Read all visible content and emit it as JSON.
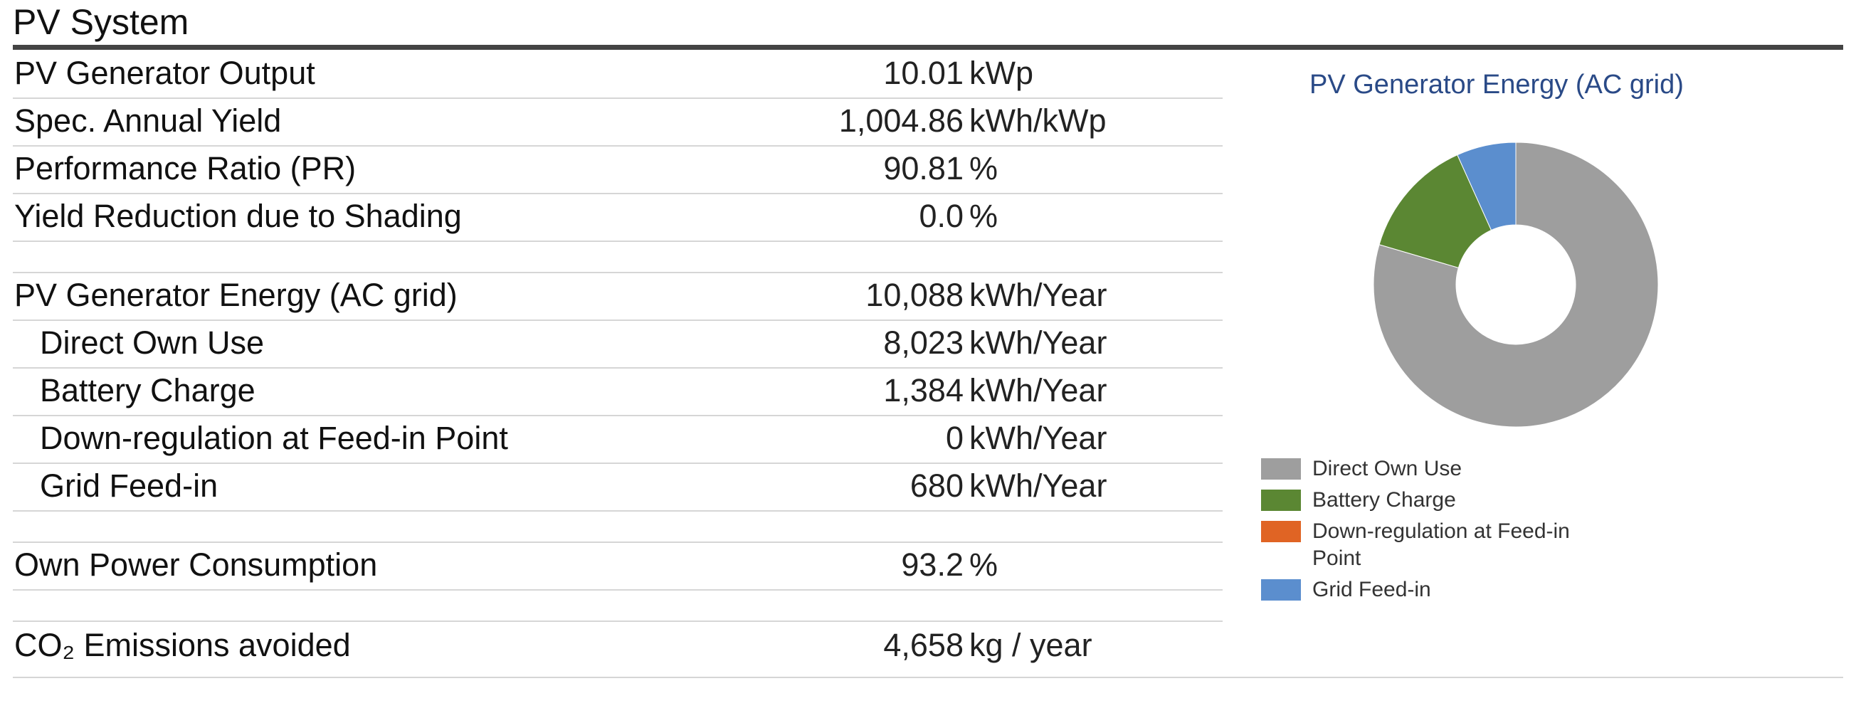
{
  "section": {
    "title": "PV System"
  },
  "rows": [
    {
      "label": "PV Generator Output",
      "value": "10.01",
      "unit": "kWp"
    },
    {
      "label": "Spec. Annual Yield",
      "value": "1,004.86",
      "unit": "kWh/kWp"
    },
    {
      "label": "Performance Ratio (PR)",
      "value": "90.81",
      "unit": "%"
    },
    {
      "label": "Yield Reduction due to Shading",
      "value": "0.0",
      "unit": "%"
    },
    {
      "label": "PV Generator Energy (AC grid)",
      "value": "10,088",
      "unit": "kWh/Year"
    },
    {
      "label": "Direct Own Use",
      "value": "8,023",
      "unit": "kWh/Year"
    },
    {
      "label": "Battery Charge",
      "value": "1,384",
      "unit": "kWh/Year"
    },
    {
      "label": "Down-regulation at Feed-in Point",
      "value": "0",
      "unit": "kWh/Year"
    },
    {
      "label": "Grid Feed-in",
      "value": "680",
      "unit": "kWh/Year"
    },
    {
      "label": "Own Power Consumption",
      "value": "93.2",
      "unit": "%"
    },
    {
      "label": "CO₂ Emissions avoided",
      "value": "4,658",
      "unit": "kg / year"
    }
  ],
  "chart_data": {
    "type": "pie",
    "title": "PV Generator Energy (AC grid)",
    "donut": true,
    "legend_position": "bottom",
    "categories": [
      "Direct Own Use",
      "Battery Charge",
      "Down-regulation at Feed-in Point",
      "Grid Feed-in"
    ],
    "values": [
      8023,
      1384,
      0,
      680
    ],
    "colors": [
      "#9e9e9e",
      "#5b8733",
      "#e06424",
      "#5b8ece"
    ],
    "legend_labels": [
      [
        "Direct Own Use"
      ],
      [
        "Battery Charge"
      ],
      [
        "Down-regulation at Feed-in",
        "Point"
      ],
      [
        "Grid Feed-in"
      ]
    ]
  }
}
